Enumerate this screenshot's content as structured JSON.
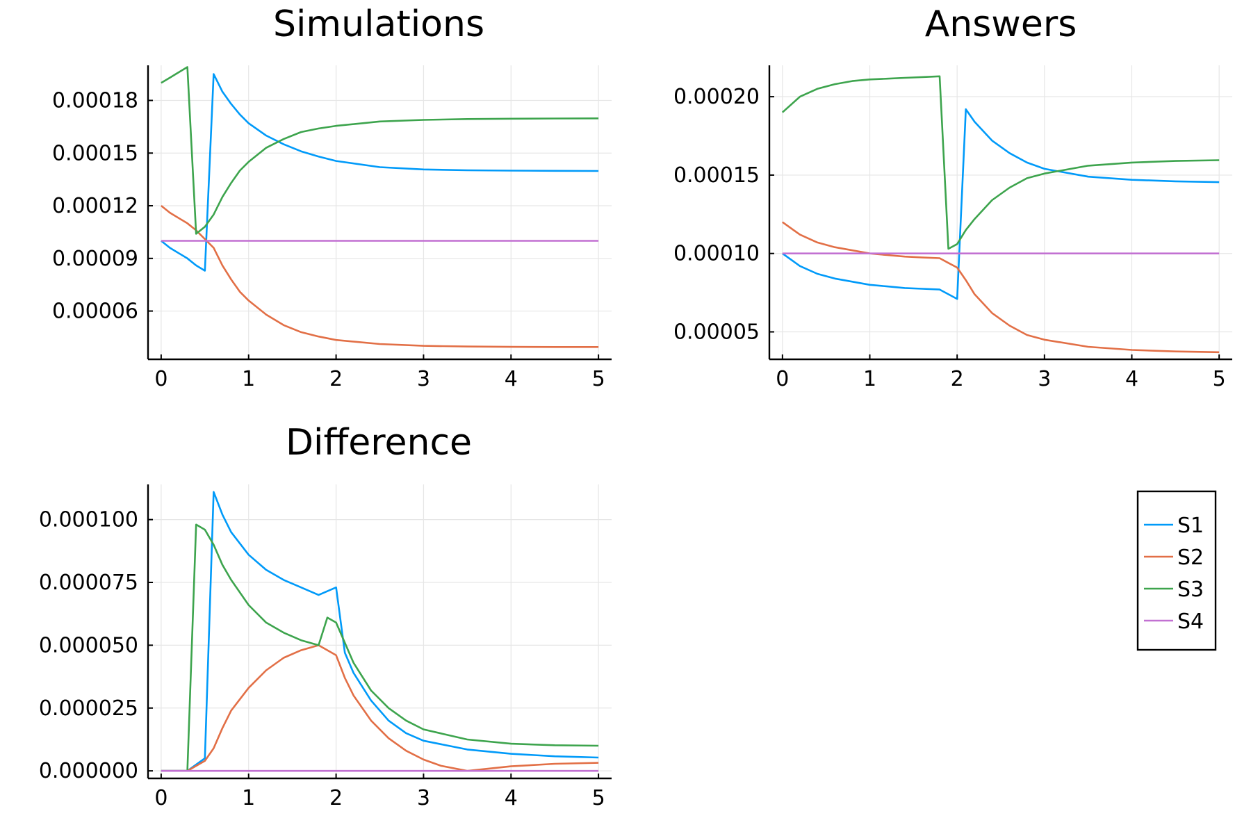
{
  "chart_data": [
    {
      "type": "line",
      "title": "Simulations",
      "xlim": [
        -0.15,
        5.15
      ],
      "ylim": [
        3.25e-05,
        0.0002
      ],
      "xticks": [
        0,
        1,
        2,
        3,
        4,
        5
      ],
      "xtick_labels": [
        "0",
        "1",
        "2",
        "3",
        "4",
        "5"
      ],
      "yticks": [
        6e-05,
        9e-05,
        0.00012,
        0.00015,
        0.00018
      ],
      "ytick_labels": [
        "0.00006",
        "0.00009",
        "0.00012",
        "0.00015",
        "0.00018"
      ],
      "grid": true,
      "series": [
        {
          "name": "S1",
          "x": [
            0,
            0.1,
            0.2,
            0.3,
            0.4,
            0.5,
            0.6,
            0.7,
            0.8,
            0.9,
            1.0,
            1.2,
            1.4,
            1.6,
            1.8,
            2.0,
            2.5,
            3.0,
            3.5,
            4.0,
            4.5,
            5.0
          ],
          "y": [
            0.0001,
            9.6e-05,
            9.3e-05,
            9e-05,
            8.6e-05,
            8.3e-05,
            0.000195,
            0.000185,
            0.000178,
            0.000172,
            0.000167,
            0.00016,
            0.000155,
            0.000151,
            0.000148,
            0.0001455,
            0.000142,
            0.0001407,
            0.0001402,
            0.00014,
            0.0001399,
            0.0001398
          ]
        },
        {
          "name": "S2",
          "x": [
            0,
            0.1,
            0.2,
            0.3,
            0.4,
            0.5,
            0.6,
            0.7,
            0.8,
            0.9,
            1.0,
            1.2,
            1.4,
            1.6,
            1.8,
            2.0,
            2.5,
            3.0,
            3.5,
            4.0,
            4.5,
            5.0
          ],
          "y": [
            0.00012,
            0.000116,
            0.000113,
            0.00011,
            0.000106,
            0.000101,
            9.6e-05,
            8.6e-05,
            7.8e-05,
            7.1e-05,
            6.6e-05,
            5.8e-05,
            5.2e-05,
            4.8e-05,
            4.55e-05,
            4.35e-05,
            4.12e-05,
            4.02e-05,
            3.98e-05,
            3.96e-05,
            3.95e-05,
            3.95e-05
          ]
        },
        {
          "name": "S3",
          "x": [
            0,
            0.1,
            0.2,
            0.3,
            0.4,
            0.5,
            0.6,
            0.7,
            0.8,
            0.9,
            1.0,
            1.2,
            1.4,
            1.6,
            1.8,
            2.0,
            2.5,
            3.0,
            3.5,
            4.0,
            4.5,
            5.0
          ],
          "y": [
            0.00019,
            0.000193,
            0.000196,
            0.000199,
            0.000104,
            0.000108,
            0.000115,
            0.000125,
            0.000133,
            0.00014,
            0.000145,
            0.000153,
            0.000158,
            0.000162,
            0.000164,
            0.0001655,
            0.000168,
            0.0001689,
            0.0001694,
            0.0001696,
            0.0001697,
            0.0001698
          ]
        },
        {
          "name": "S4",
          "x": [
            0,
            5
          ],
          "y": [
            0.0001,
            0.0001
          ]
        }
      ]
    },
    {
      "type": "line",
      "title": "Answers",
      "xlim": [
        -0.15,
        5.15
      ],
      "ylim": [
        3.25e-05,
        0.00022
      ],
      "xticks": [
        0,
        1,
        2,
        3,
        4,
        5
      ],
      "xtick_labels": [
        "0",
        "1",
        "2",
        "3",
        "4",
        "5"
      ],
      "yticks": [
        5e-05,
        0.0001,
        0.00015,
        0.0002
      ],
      "ytick_labels": [
        "0.00005",
        "0.00010",
        "0.00015",
        "0.00020"
      ],
      "grid": true,
      "series": [
        {
          "name": "S1",
          "x": [
            0,
            0.2,
            0.4,
            0.6,
            0.8,
            1.0,
            1.2,
            1.4,
            1.6,
            1.8,
            1.9,
            2.0,
            2.1,
            2.2,
            2.4,
            2.6,
            2.8,
            3.0,
            3.5,
            4.0,
            4.5,
            5.0
          ],
          "y": [
            0.0001,
            9.2e-05,
            8.7e-05,
            8.4e-05,
            8.2e-05,
            8e-05,
            7.9e-05,
            7.8e-05,
            7.75e-05,
            7.7e-05,
            7.4e-05,
            7.1e-05,
            0.000192,
            0.000184,
            0.000172,
            0.000164,
            0.000158,
            0.000154,
            0.000149,
            0.000147,
            0.000146,
            0.0001455
          ]
        },
        {
          "name": "S2",
          "x": [
            0,
            0.2,
            0.4,
            0.6,
            0.8,
            1.0,
            1.2,
            1.4,
            1.6,
            1.8,
            1.9,
            2.0,
            2.1,
            2.2,
            2.4,
            2.6,
            2.8,
            3.0,
            3.5,
            4.0,
            4.5,
            5.0
          ],
          "y": [
            0.00012,
            0.000112,
            0.000107,
            0.000104,
            0.000102,
            0.0001,
            9.9e-05,
            9.8e-05,
            9.75e-05,
            9.7e-05,
            9.4e-05,
            9.1e-05,
            8.3e-05,
            7.4e-05,
            6.2e-05,
            5.4e-05,
            4.8e-05,
            4.5e-05,
            4.05e-05,
            3.85e-05,
            3.75e-05,
            3.7e-05
          ]
        },
        {
          "name": "S3",
          "x": [
            0,
            0.2,
            0.4,
            0.6,
            0.8,
            1.0,
            1.2,
            1.4,
            1.6,
            1.8,
            1.9,
            2.0,
            2.1,
            2.2,
            2.4,
            2.6,
            2.8,
            3.0,
            3.5,
            4.0,
            4.5,
            5.0
          ],
          "y": [
            0.00019,
            0.0002,
            0.000205,
            0.000208,
            0.00021,
            0.000211,
            0.0002115,
            0.000212,
            0.0002125,
            0.000213,
            0.000103,
            0.000106,
            0.000115,
            0.000122,
            0.000134,
            0.000142,
            0.000148,
            0.000151,
            0.000156,
            0.000158,
            0.000159,
            0.0001595
          ]
        },
        {
          "name": "S4",
          "x": [
            0,
            5
          ],
          "y": [
            0.0001,
            0.0001
          ]
        }
      ]
    },
    {
      "type": "line",
      "title": "Difference",
      "xlim": [
        -0.15,
        5.15
      ],
      "ylim": [
        -3e-06,
        0.000114
      ],
      "xticks": [
        0,
        1,
        2,
        3,
        4,
        5
      ],
      "xtick_labels": [
        "0",
        "1",
        "2",
        "3",
        "4",
        "5"
      ],
      "yticks": [
        0,
        2.5e-05,
        5e-05,
        7.5e-05,
        0.0001
      ],
      "ytick_labels": [
        "0.000000",
        "0.000025",
        "0.000050",
        "0.000075",
        "0.000100"
      ],
      "grid": true,
      "series": [
        {
          "name": "S1",
          "x": [
            0,
            0.3,
            0.5,
            0.6,
            0.7,
            0.8,
            1.0,
            1.2,
            1.4,
            1.6,
            1.8,
            2.0,
            2.1,
            2.2,
            2.4,
            2.6,
            2.8,
            3.0,
            3.5,
            4.0,
            4.5,
            5.0
          ],
          "y": [
            0,
            0,
            5e-06,
            0.000111,
            0.000102,
            9.5e-05,
            8.6e-05,
            8e-05,
            7.6e-05,
            7.3e-05,
            7e-05,
            7.3e-05,
            4.7e-05,
            3.9e-05,
            2.8e-05,
            2e-05,
            1.5e-05,
            1.2e-05,
            8.5e-06,
            6.8e-06,
            5.8e-06,
            5.3e-06
          ]
        },
        {
          "name": "S2",
          "x": [
            0,
            0.3,
            0.5,
            0.6,
            0.7,
            0.8,
            1.0,
            1.2,
            1.4,
            1.6,
            1.8,
            2.0,
            2.1,
            2.2,
            2.4,
            2.6,
            2.8,
            3.0,
            3.2,
            3.5,
            4.0,
            4.5,
            5.0
          ],
          "y": [
            0,
            0,
            4e-06,
            9e-06,
            1.7e-05,
            2.4e-05,
            3.3e-05,
            4e-05,
            4.5e-05,
            4.8e-05,
            5e-05,
            4.6e-05,
            3.7e-05,
            3e-05,
            2e-05,
            1.3e-05,
            8e-06,
            4.5e-06,
            2e-06,
            0,
            1.8e-06,
            2.8e-06,
            3.2e-06
          ]
        },
        {
          "name": "S3",
          "x": [
            0,
            0.3,
            0.4,
            0.5,
            0.6,
            0.7,
            0.8,
            1.0,
            1.2,
            1.4,
            1.6,
            1.8,
            1.9,
            2.0,
            2.2,
            2.4,
            2.6,
            2.8,
            3.0,
            3.5,
            4.0,
            4.5,
            5.0
          ],
          "y": [
            0,
            0,
            9.8e-05,
            9.6e-05,
            9e-05,
            8.2e-05,
            7.6e-05,
            6.6e-05,
            5.9e-05,
            5.5e-05,
            5.2e-05,
            5e-05,
            6.1e-05,
            5.9e-05,
            4.3e-05,
            3.2e-05,
            2.5e-05,
            2e-05,
            1.65e-05,
            1.25e-05,
            1.08e-05,
            1.02e-05,
            1e-05
          ]
        },
        {
          "name": "S4",
          "x": [
            0,
            5
          ],
          "y": [
            0,
            0
          ]
        }
      ]
    }
  ],
  "legend": {
    "placement": "right",
    "entries": [
      "S1",
      "S2",
      "S3",
      "S4"
    ],
    "colors": [
      "#009af9",
      "#e26f46",
      "#3da44d",
      "#c271d2"
    ]
  }
}
